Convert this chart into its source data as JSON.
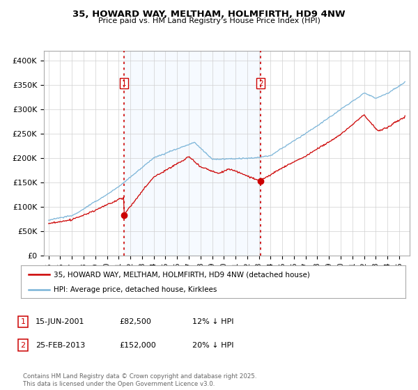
{
  "title_line1": "35, HOWARD WAY, MELTHAM, HOLMFIRTH, HD9 4NW",
  "title_line2": "Price paid vs. HM Land Registry's House Price Index (HPI)",
  "ylim": [
    0,
    420000
  ],
  "yticks": [
    0,
    50000,
    100000,
    150000,
    200000,
    250000,
    300000,
    350000,
    400000
  ],
  "ytick_labels": [
    "£0",
    "£50K",
    "£100K",
    "£150K",
    "£200K",
    "£250K",
    "£300K",
    "£350K",
    "£400K"
  ],
  "hpi_color": "#7ab4d8",
  "price_color": "#cc0000",
  "vline_color": "#cc0000",
  "shade_color": "#ddeeff",
  "marker1_x": 2001.46,
  "marker2_x": 2013.15,
  "sale1_value": 82500,
  "sale2_value": 152000,
  "legend_entries": [
    "35, HOWARD WAY, MELTHAM, HOLMFIRTH, HD9 4NW (detached house)",
    "HPI: Average price, detached house, Kirklees"
  ],
  "footnote_entries": [
    {
      "num": "1",
      "date": "15-JUN-2001",
      "price": "£82,500",
      "hpi": "12% ↓ HPI"
    },
    {
      "num": "2",
      "date": "25-FEB-2013",
      "price": "£152,000",
      "hpi": "20% ↓ HPI"
    }
  ],
  "footnote": "Contains HM Land Registry data © Crown copyright and database right 2025.\nThis data is licensed under the Open Government Licence v3.0.",
  "background_color": "#ffffff",
  "grid_color": "#d0d0d0"
}
